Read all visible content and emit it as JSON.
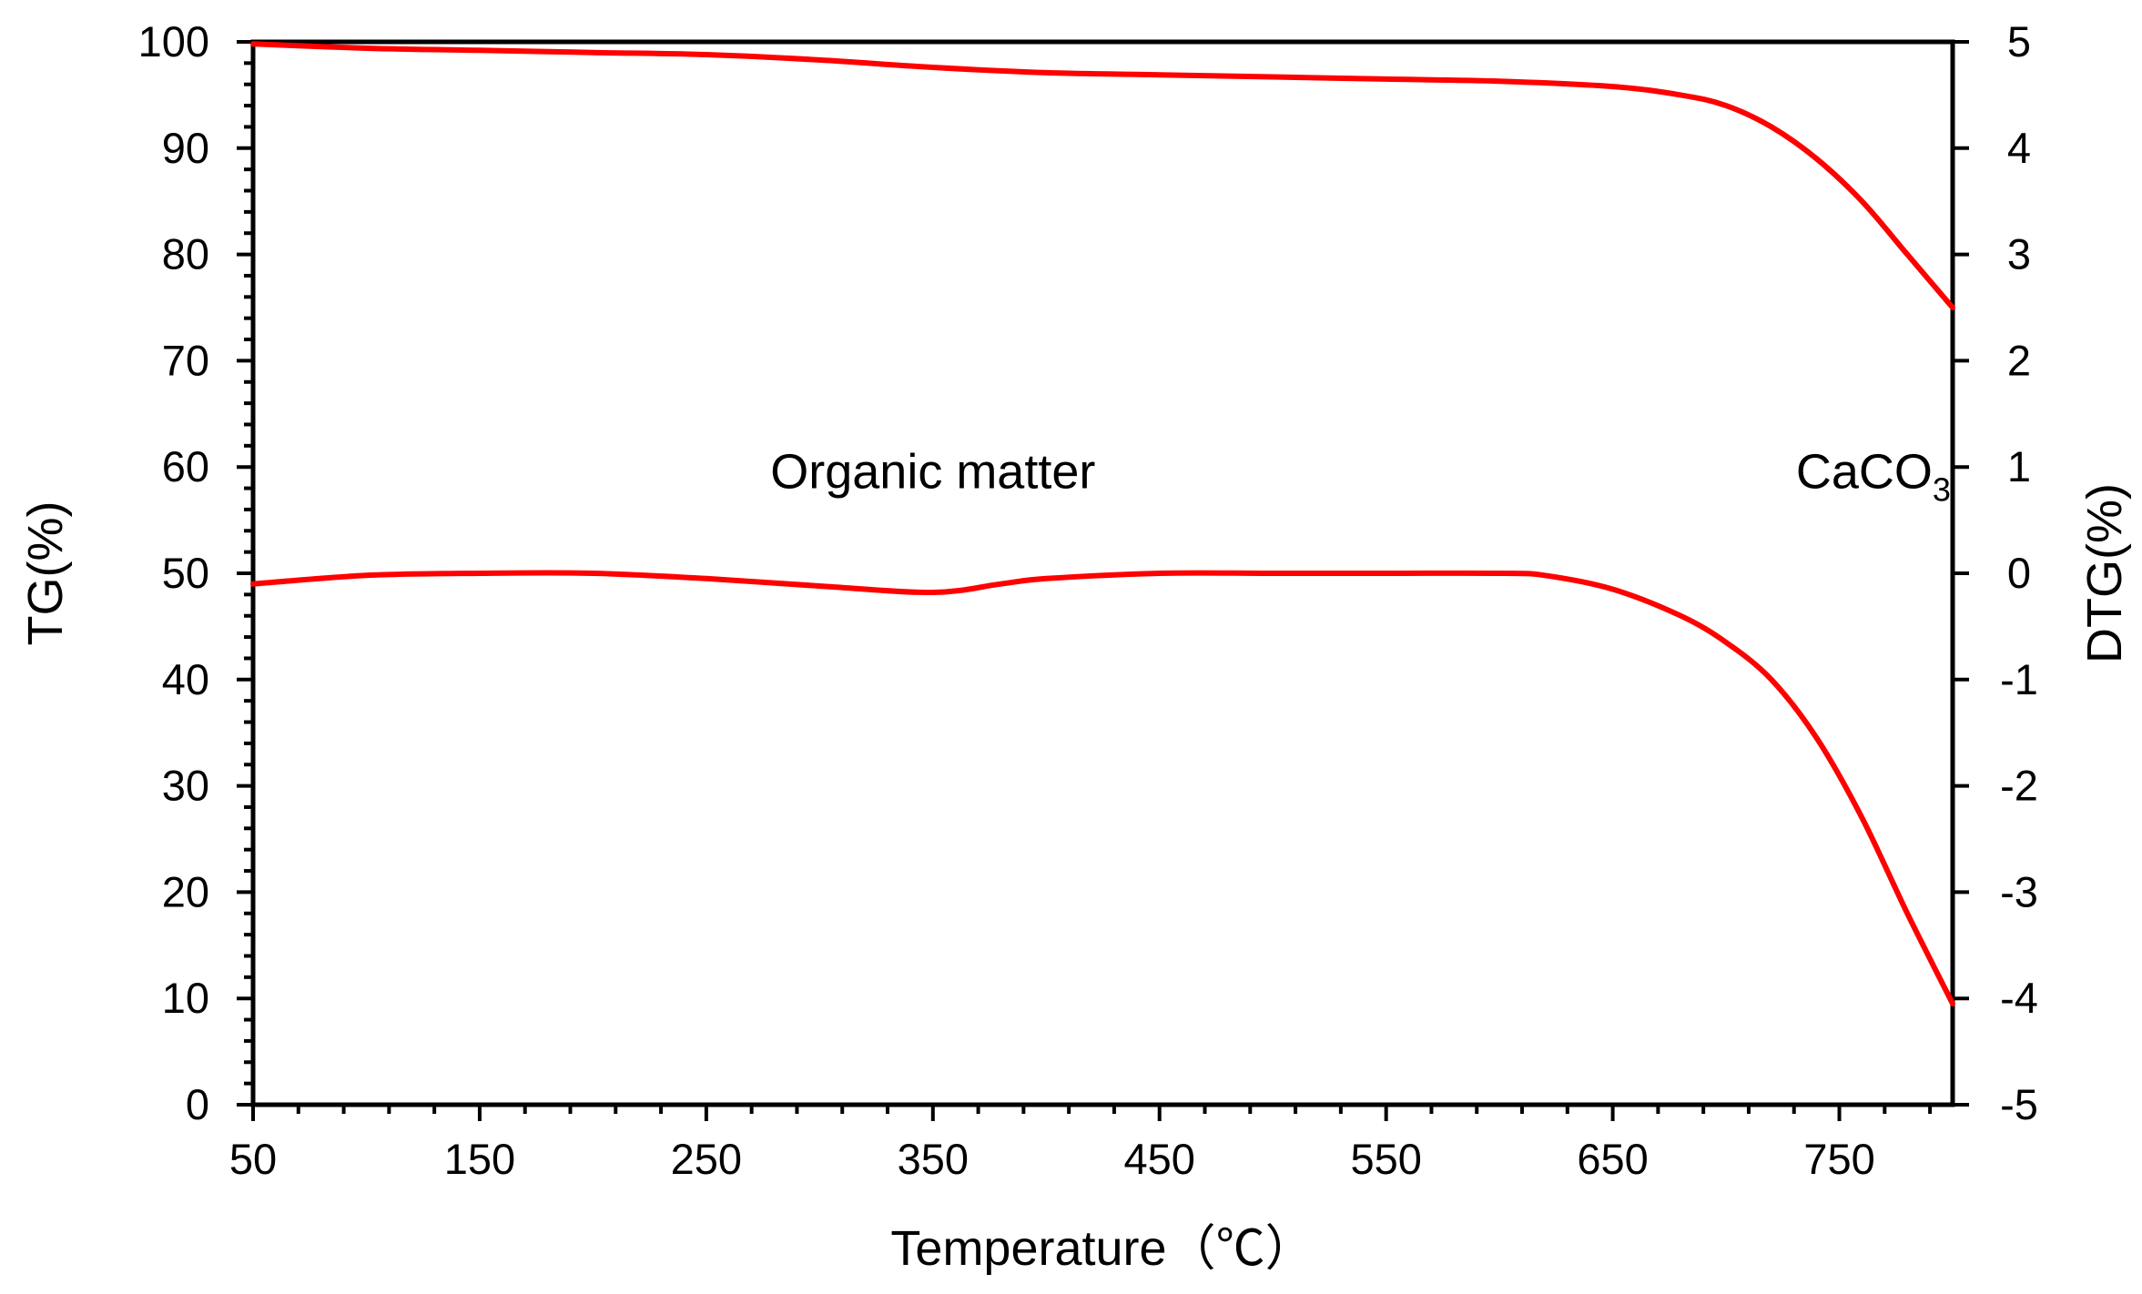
{
  "colors": {
    "series": "#ff0000",
    "axis": "#000000",
    "background": "#ffffff"
  },
  "chart_data": {
    "type": "line",
    "xlabel": "Temperature（℃）",
    "ylabel_left": "TG(%)",
    "ylabel_right": "DTG(%)",
    "xlim": [
      50,
      800
    ],
    "ylim_left": [
      0,
      100
    ],
    "ylim_right": [
      -5,
      5
    ],
    "x_ticks": [
      "50",
      "150",
      "250",
      "350",
      "450",
      "550",
      "650",
      "750"
    ],
    "y_left_ticks": [
      "0",
      "10",
      "20",
      "30",
      "40",
      "50",
      "60",
      "70",
      "80",
      "90",
      "100"
    ],
    "y_right_ticks": [
      "-5",
      "-4",
      "-3",
      "-2",
      "-1",
      "0",
      "1",
      "2",
      "3",
      "4",
      "5"
    ],
    "grid": false,
    "series": [
      {
        "name": "TG",
        "axis": "left",
        "x": [
          50,
          100,
          150,
          200,
          250,
          300,
          350,
          400,
          450,
          500,
          550,
          600,
          650,
          680,
          700,
          720,
          740,
          760,
          780,
          800
        ],
        "y": [
          99.8,
          99.4,
          99.2,
          99.0,
          98.8,
          98.3,
          97.6,
          97.1,
          96.9,
          96.7,
          96.5,
          96.3,
          95.8,
          95.0,
          94.0,
          92.0,
          89.0,
          85.0,
          80.0,
          75.0
        ]
      },
      {
        "name": "DTG",
        "axis": "right",
        "x": [
          50,
          100,
          150,
          200,
          250,
          300,
          350,
          380,
          400,
          450,
          500,
          550,
          600,
          620,
          650,
          680,
          700,
          720,
          740,
          760,
          780,
          800
        ],
        "y": [
          -0.1,
          -0.02,
          0.0,
          0.0,
          -0.05,
          -0.12,
          -0.18,
          -0.1,
          -0.05,
          0.0,
          0.0,
          0.0,
          0.0,
          -0.02,
          -0.15,
          -0.4,
          -0.65,
          -1.0,
          -1.55,
          -2.3,
          -3.2,
          -4.05
        ]
      }
    ],
    "annotations": [
      {
        "text": "Organic matter",
        "x": 350,
        "y_left": 58
      },
      {
        "text": "CaCO",
        "subscript": "3",
        "x": 765,
        "y_left": 58
      }
    ]
  }
}
